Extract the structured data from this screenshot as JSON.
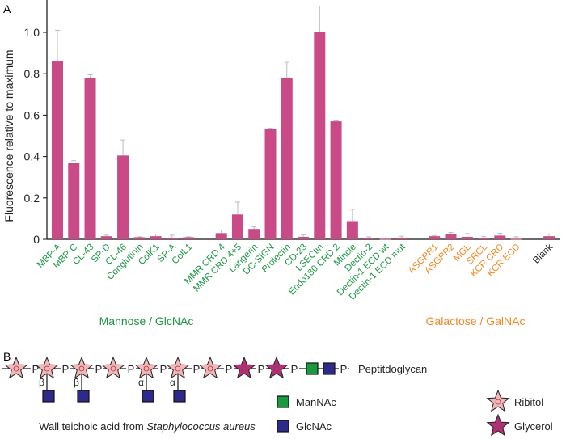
{
  "panel_a_label": "A",
  "panel_b_label": "B",
  "colors": {
    "bar": "#c94a86",
    "error": "#bbbbbb",
    "mannose": "#1a9641",
    "galactose": "#f08a24",
    "blank": "#222222",
    "ribitol": "#f4b6b8",
    "glycerol": "#b0307a",
    "mannac": "#1a9a3e",
    "glcnac": "#2e2a8a"
  },
  "chart_data": {
    "type": "bar",
    "title": "",
    "xlabel": "",
    "ylabel": "Fluorescence relative to maximum",
    "ylim": [
      0,
      1.15
    ],
    "yticks": [
      "0",
      "0.2",
      "0.4",
      "0.6",
      "0.8",
      "1.0"
    ],
    "ytick_values": [
      0,
      0.2,
      0.4,
      0.6,
      0.8,
      1.0
    ],
    "grid": false,
    "categories": [
      "MBP-A",
      "MBP-C",
      "CL-43",
      "SP-D",
      "CL-46",
      "Conglutinin",
      "ColK1",
      "SP-A",
      "ColL1",
      "MMR CRD 4",
      "MMR CRD 4+5",
      "Langerin",
      "DC-SIGN",
      "Prolectin",
      "CD-23",
      "LSECtin",
      "Endo180 CRD 2",
      "Mincle",
      "Dectin-2",
      "Dectin-1 ECD wt",
      "Dectin-1 ECD mut",
      "ASGPR1",
      "ASGPR2",
      "MGL",
      "SRCL",
      "KCR CRD",
      "KCR ECD",
      "Blank"
    ],
    "slots": [
      0,
      1,
      2,
      3,
      4,
      5,
      6,
      7,
      8,
      10,
      11,
      12,
      13,
      14,
      15,
      16,
      17,
      18,
      19,
      20,
      21,
      23,
      24,
      25,
      26,
      27,
      28,
      30
    ],
    "groups_of_categories": [
      "mannose",
      "mannose",
      "mannose",
      "mannose",
      "mannose",
      "mannose",
      "mannose",
      "mannose",
      "mannose",
      "mannose",
      "mannose",
      "mannose",
      "mannose",
      "mannose",
      "mannose",
      "mannose",
      "mannose",
      "mannose",
      "mannose",
      "mannose",
      "mannose",
      "galactose",
      "galactose",
      "galactose",
      "galactose",
      "galactose",
      "galactose",
      "blank"
    ],
    "values": [
      0.86,
      0.37,
      0.78,
      0.015,
      0.405,
      0.01,
      0.015,
      0.005,
      0.01,
      0.03,
      0.12,
      0.05,
      0.535,
      0.78,
      0.012,
      1.0,
      0.57,
      0.088,
      0.005,
      0.002,
      0.008,
      0.015,
      0.027,
      0.012,
      0.004,
      0.018,
      0.002,
      0.015
    ],
    "error_upper": [
      1.01,
      0.38,
      0.795,
      0.02,
      0.48,
      0.012,
      0.025,
      0.02,
      0.012,
      0.045,
      0.18,
      0.06,
      0.537,
      0.855,
      0.022,
      1.127,
      0.572,
      0.145,
      0.012,
      0.006,
      0.015,
      0.018,
      0.033,
      0.028,
      0.014,
      0.029,
      0.012,
      0.026
    ],
    "group_labels": [
      {
        "key": "mannose",
        "text": "Mannose / GlcNAc"
      },
      {
        "key": "galactose",
        "text": "Galactose / GalNAc"
      }
    ]
  },
  "diagram": {
    "phosphate": "P",
    "terminus": "Peptitdoglycan",
    "linkages": [
      "β",
      "β",
      "α",
      "α"
    ],
    "caption_plain": "Wall teichoic acid from ",
    "caption_italic": "Staphylococcus aureus",
    "legend": [
      {
        "label": "ManNAc",
        "shape": "square",
        "color_key": "mannac"
      },
      {
        "label": "GlcNAc",
        "shape": "square",
        "color_key": "glcnac"
      },
      {
        "label": "Ribitol",
        "shape": "star",
        "color_key": "ribitol"
      },
      {
        "label": "Glycerol",
        "shape": "star",
        "color_key": "glycerol"
      }
    ]
  }
}
